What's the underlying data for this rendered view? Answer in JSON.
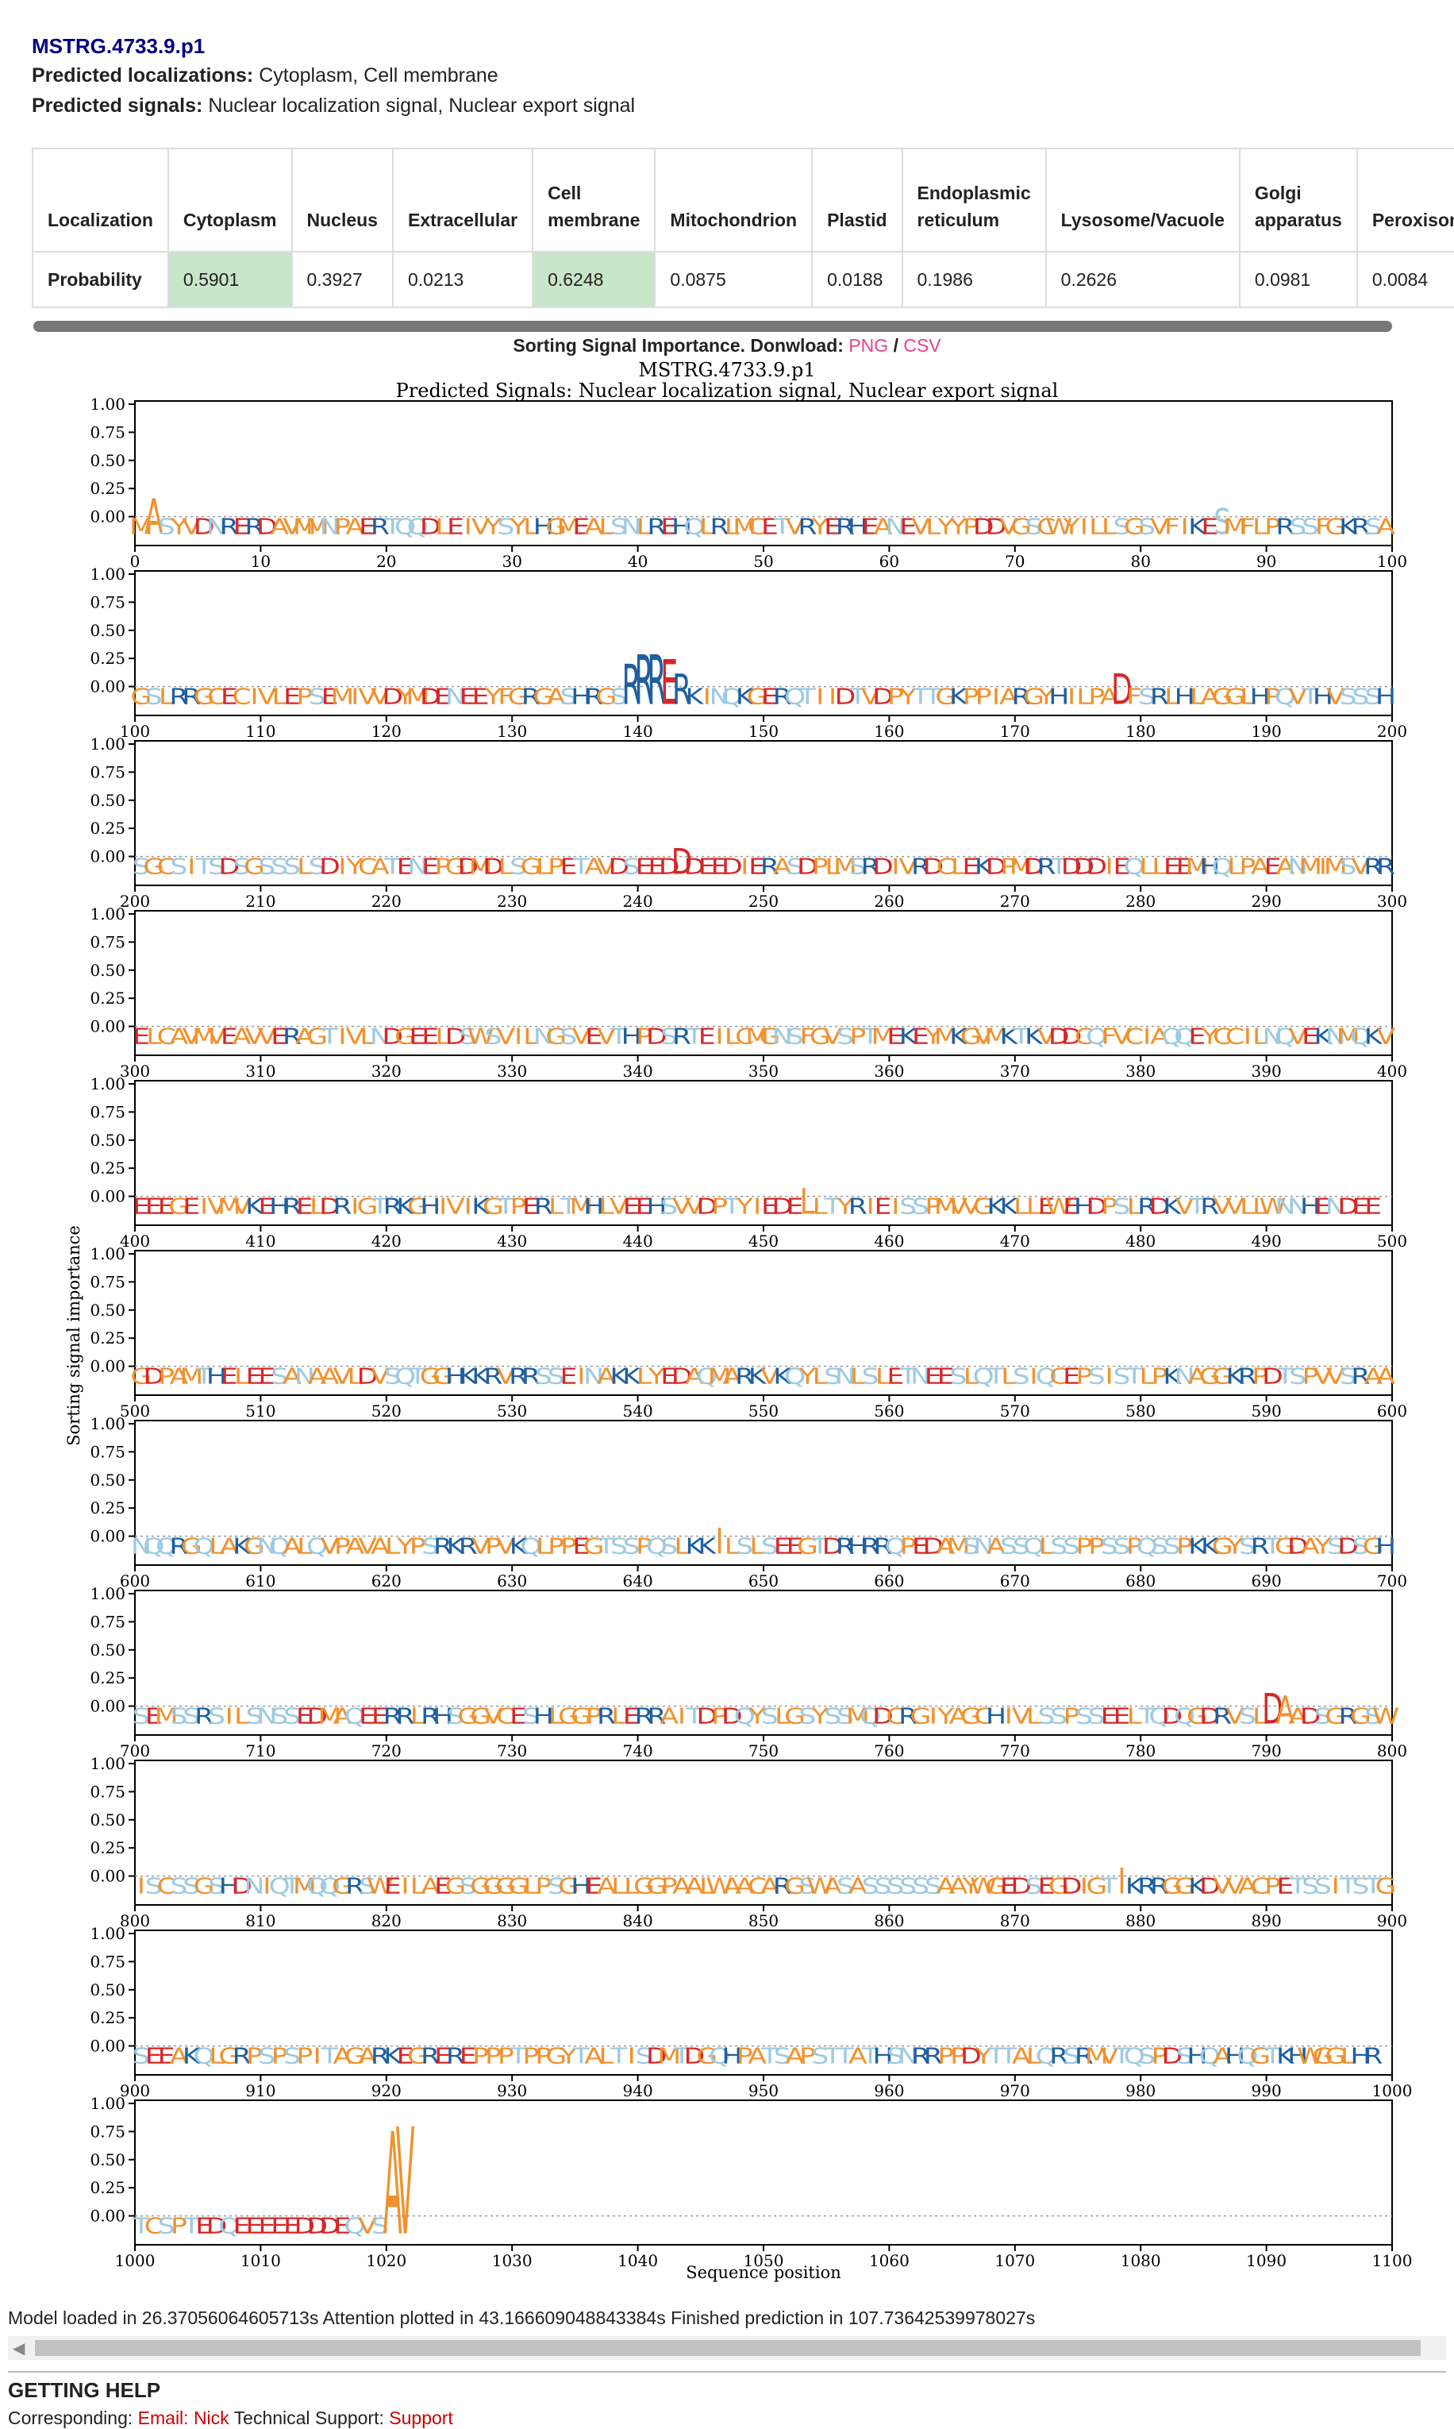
{
  "header": {
    "protein_id": "MSTRG.4733.9.p1",
    "localizations_label": "Predicted localizations:",
    "localizations_value": "Cytoplasm, Cell membrane",
    "signals_label": "Predicted signals:",
    "signals_value": "Nuclear localization signal, Nuclear export signal"
  },
  "table": {
    "row_headers": [
      "Localization",
      "Probability"
    ],
    "columns": [
      {
        "name": "Cytoplasm",
        "value": "0.5901",
        "highlight": true
      },
      {
        "name": "Nucleus",
        "value": "0.3927",
        "highlight": false
      },
      {
        "name": "Extracellular",
        "value": "0.0213",
        "highlight": false
      },
      {
        "name": "Cell membrane",
        "value": "0.6248",
        "highlight": true
      },
      {
        "name": "Mitochondrion",
        "value": "0.0875",
        "highlight": false
      },
      {
        "name": "Plastid",
        "value": "0.0188",
        "highlight": false
      },
      {
        "name": "Endoplasmic reticulum",
        "value": "0.1986",
        "highlight": false
      },
      {
        "name": "Lysosome/Vacuole",
        "value": "0.2626",
        "highlight": false
      },
      {
        "name": "Golgi apparatus",
        "value": "0.0981",
        "highlight": false
      },
      {
        "name": "Peroxisome",
        "value": "0.0084",
        "highlight": false
      }
    ],
    "highlight_color": "#c8e6c9"
  },
  "figure": {
    "heading": "Sorting Signal Importance. Donwload:",
    "png_link": "PNG",
    "separator": "/",
    "csv_link": "CSV",
    "link_color": "#e8408a"
  },
  "chart_data": {
    "type": "sequence-logo",
    "title": "MSTRG.4733.9.p1",
    "subtitle": "Predicted Signals: Nuclear localization signal, Nuclear export signal",
    "xlabel": "Sequence position",
    "ylabel": "Sorting signal importance",
    "ylim": [
      0,
      1
    ],
    "yticks": [
      "1.00",
      "0.75",
      "0.50",
      "0.25",
      "0.00"
    ],
    "rows": [
      {
        "start": 0,
        "end": 100,
        "xticks": [
          0,
          10,
          20,
          30,
          40,
          50,
          60,
          70,
          80,
          90,
          100
        ],
        "sequence": "MASYVDNRERDAVMMNPAERTQQDLEIVYSYLHGMEALSNLREHQLRLMCETVRYERHEANEVLYYPDDVGSCWYILLSGSVFIKESMFLPRSSFGKRSA",
        "peaks": [
          {
            "pos": 1,
            "value": 0.2
          },
          {
            "pos": 86,
            "value": 0.1
          }
        ]
      },
      {
        "start": 100,
        "end": 200,
        "xticks": [
          100,
          110,
          120,
          130,
          140,
          150,
          160,
          170,
          180,
          190,
          200
        ],
        "sequence": "GSLRRGCECIVLEPSEMIVVDYMDENEEYFGRGASHRGSRRRERKINQKGERQTIIDTVDPYTTGKPPIARGYHILPADFSRLHLAGGLHPQVTHVSSSH",
        "peaks": [
          {
            "pos": 139,
            "value": 0.25
          },
          {
            "pos": 140,
            "value": 0.35
          },
          {
            "pos": 141,
            "value": 0.35
          },
          {
            "pos": 142,
            "value": 0.3
          },
          {
            "pos": 143,
            "value": 0.15
          },
          {
            "pos": 178,
            "value": 0.15
          }
        ]
      },
      {
        "start": 200,
        "end": 300,
        "xticks": [
          200,
          210,
          220,
          230,
          240,
          250,
          260,
          270,
          280,
          290,
          300
        ],
        "sequence": "SGCSITSDSGSSSLSDIYCATENEPGDMDLSGLPETAVDSEEDDDEEDIERASDPLMSRDIVRDCLEKDPMDRTDDDIEQLLEEMHQLPAEANMIMSVRR",
        "peaks": [
          {
            "pos": 243,
            "value": 0.1
          }
        ]
      },
      {
        "start": 300,
        "end": 400,
        "xticks": [
          300,
          310,
          320,
          330,
          340,
          350,
          360,
          370,
          380,
          390,
          400
        ],
        "sequence": "ELCAVMVEAVVERAGTIVLNDGEELDSWSVILNGSVEVTHPDSRTEILCMGNSFGVSPTMEKEYMKGVMKTKVDDCQFVCIAQQEYCCILNQVEKNMQKV",
        "peaks": []
      },
      {
        "start": 400,
        "end": 500,
        "xticks": [
          400,
          410,
          420,
          430,
          440,
          450,
          460,
          470,
          480,
          490,
          500
        ],
        "sequence": "EEEGEIVMVKEHRELDRIGTRKGHIVIKGTPERLTMHLVEEHSVVDPTYIEDELLTYRIEISSPMVVGKKLLEWEHDPSLRDKVTRVVLLWNNHENDEE",
        "peaks": [
          {
            "pos": 453,
            "value": 0.1
          }
        ]
      },
      {
        "start": 500,
        "end": 600,
        "xticks": [
          500,
          510,
          520,
          530,
          540,
          550,
          560,
          570,
          580,
          590,
          600
        ],
        "sequence": "GDPAMTHELEESANAAVLDVSQTGGHKKRVRRSSEINAKKLYEDAQMARKVKQYLSNLSLETNEESLQTLSIQCEPSISTLPKNAGGKRPDTSPVVSRAA",
        "peaks": []
      },
      {
        "start": 600,
        "end": 700,
        "xticks": [
          600,
          610,
          620,
          630,
          640,
          650,
          660,
          670,
          680,
          690,
          700
        ],
        "sequence": "NQQRGQLAKGNQALQVPAVALYPSRKRVPVKQLPPEGTSSPQSLKKILSLSEEGTDRHRRQPEDAMSNASSQLSSPPSSPQSSPKKGYSRTGDAYSDSGH",
        "peaks": [
          {
            "pos": 646,
            "value": 0.1
          }
        ]
      },
      {
        "start": 700,
        "end": 800,
        "xticks": [
          700,
          710,
          720,
          730,
          740,
          750,
          760,
          770,
          780,
          790,
          800
        ],
        "sequence": "SEMSSRSILSNSSEDMAQEERRLRHSGGVCESHLGGPRLERRAITDPDQYSLGSYSSMQDCRGIYAGCHIVLSSPSSEELTQDQGDRVSLDAADSGRGSW",
        "peaks": [
          {
            "pos": 790,
            "value": 0.15
          },
          {
            "pos": 791,
            "value": 0.12
          }
        ]
      },
      {
        "start": 800,
        "end": 900,
        "xticks": [
          800,
          810,
          820,
          830,
          840,
          850,
          860,
          870,
          880,
          890,
          900
        ],
        "sequence": "ISCSSGSHDNIQTMQQGRSWEILAEGSGGGGLPSGHEALLGGPAALWAACARGSWASASSSSSSAAYWGEDSEGDIGTIKRRGGKDVVACPETSSITSTG",
        "peaks": [
          {
            "pos": 878,
            "value": 0.1
          }
        ]
      },
      {
        "start": 900,
        "end": 1000,
        "xticks": [
          900,
          910,
          920,
          930,
          940,
          950,
          960,
          970,
          980,
          990,
          1000
        ],
        "sequence": "SEEAKQLGRPSPSPITAGARKEGREREPPPTPPGYTALTISDMTDGQHPATSAPSTTATHSNRRPPDYTTALQRSRMVTQSPDSHQAHQGTKHWGGLHR",
        "peaks": []
      },
      {
        "start": 1000,
        "end": 1100,
        "xticks": [
          1000,
          1010,
          1020,
          1030,
          1040,
          1050,
          1060,
          1070,
          1080,
          1090,
          1100
        ],
        "sequence": "TCSPTEDQEEEEEDDDEQVSAV",
        "peaks": [
          {
            "pos": 1020,
            "value": 0.9
          },
          {
            "pos": 1021,
            "value": 0.95
          },
          {
            "pos": 1022,
            "value": 0.7
          }
        ]
      }
    ],
    "colors": {
      "positive": "#1f5fa0",
      "acidic": "#d62728",
      "hydrophobic": "#f0922f",
      "polar": "#9ecae1",
      "special": "#e8a070"
    }
  },
  "footer": {
    "timing": "Model loaded in 26.37056064605713s Attention plotted in 43.166609048843384s Finished prediction in 107.73642539978027s",
    "getting_help": "GETTING HELP",
    "contact_prefix": "Corresponding: ",
    "contact_email_link": "Email: Nick",
    "contact_mid": " Technical Support: ",
    "contact_support_link": "Support"
  }
}
